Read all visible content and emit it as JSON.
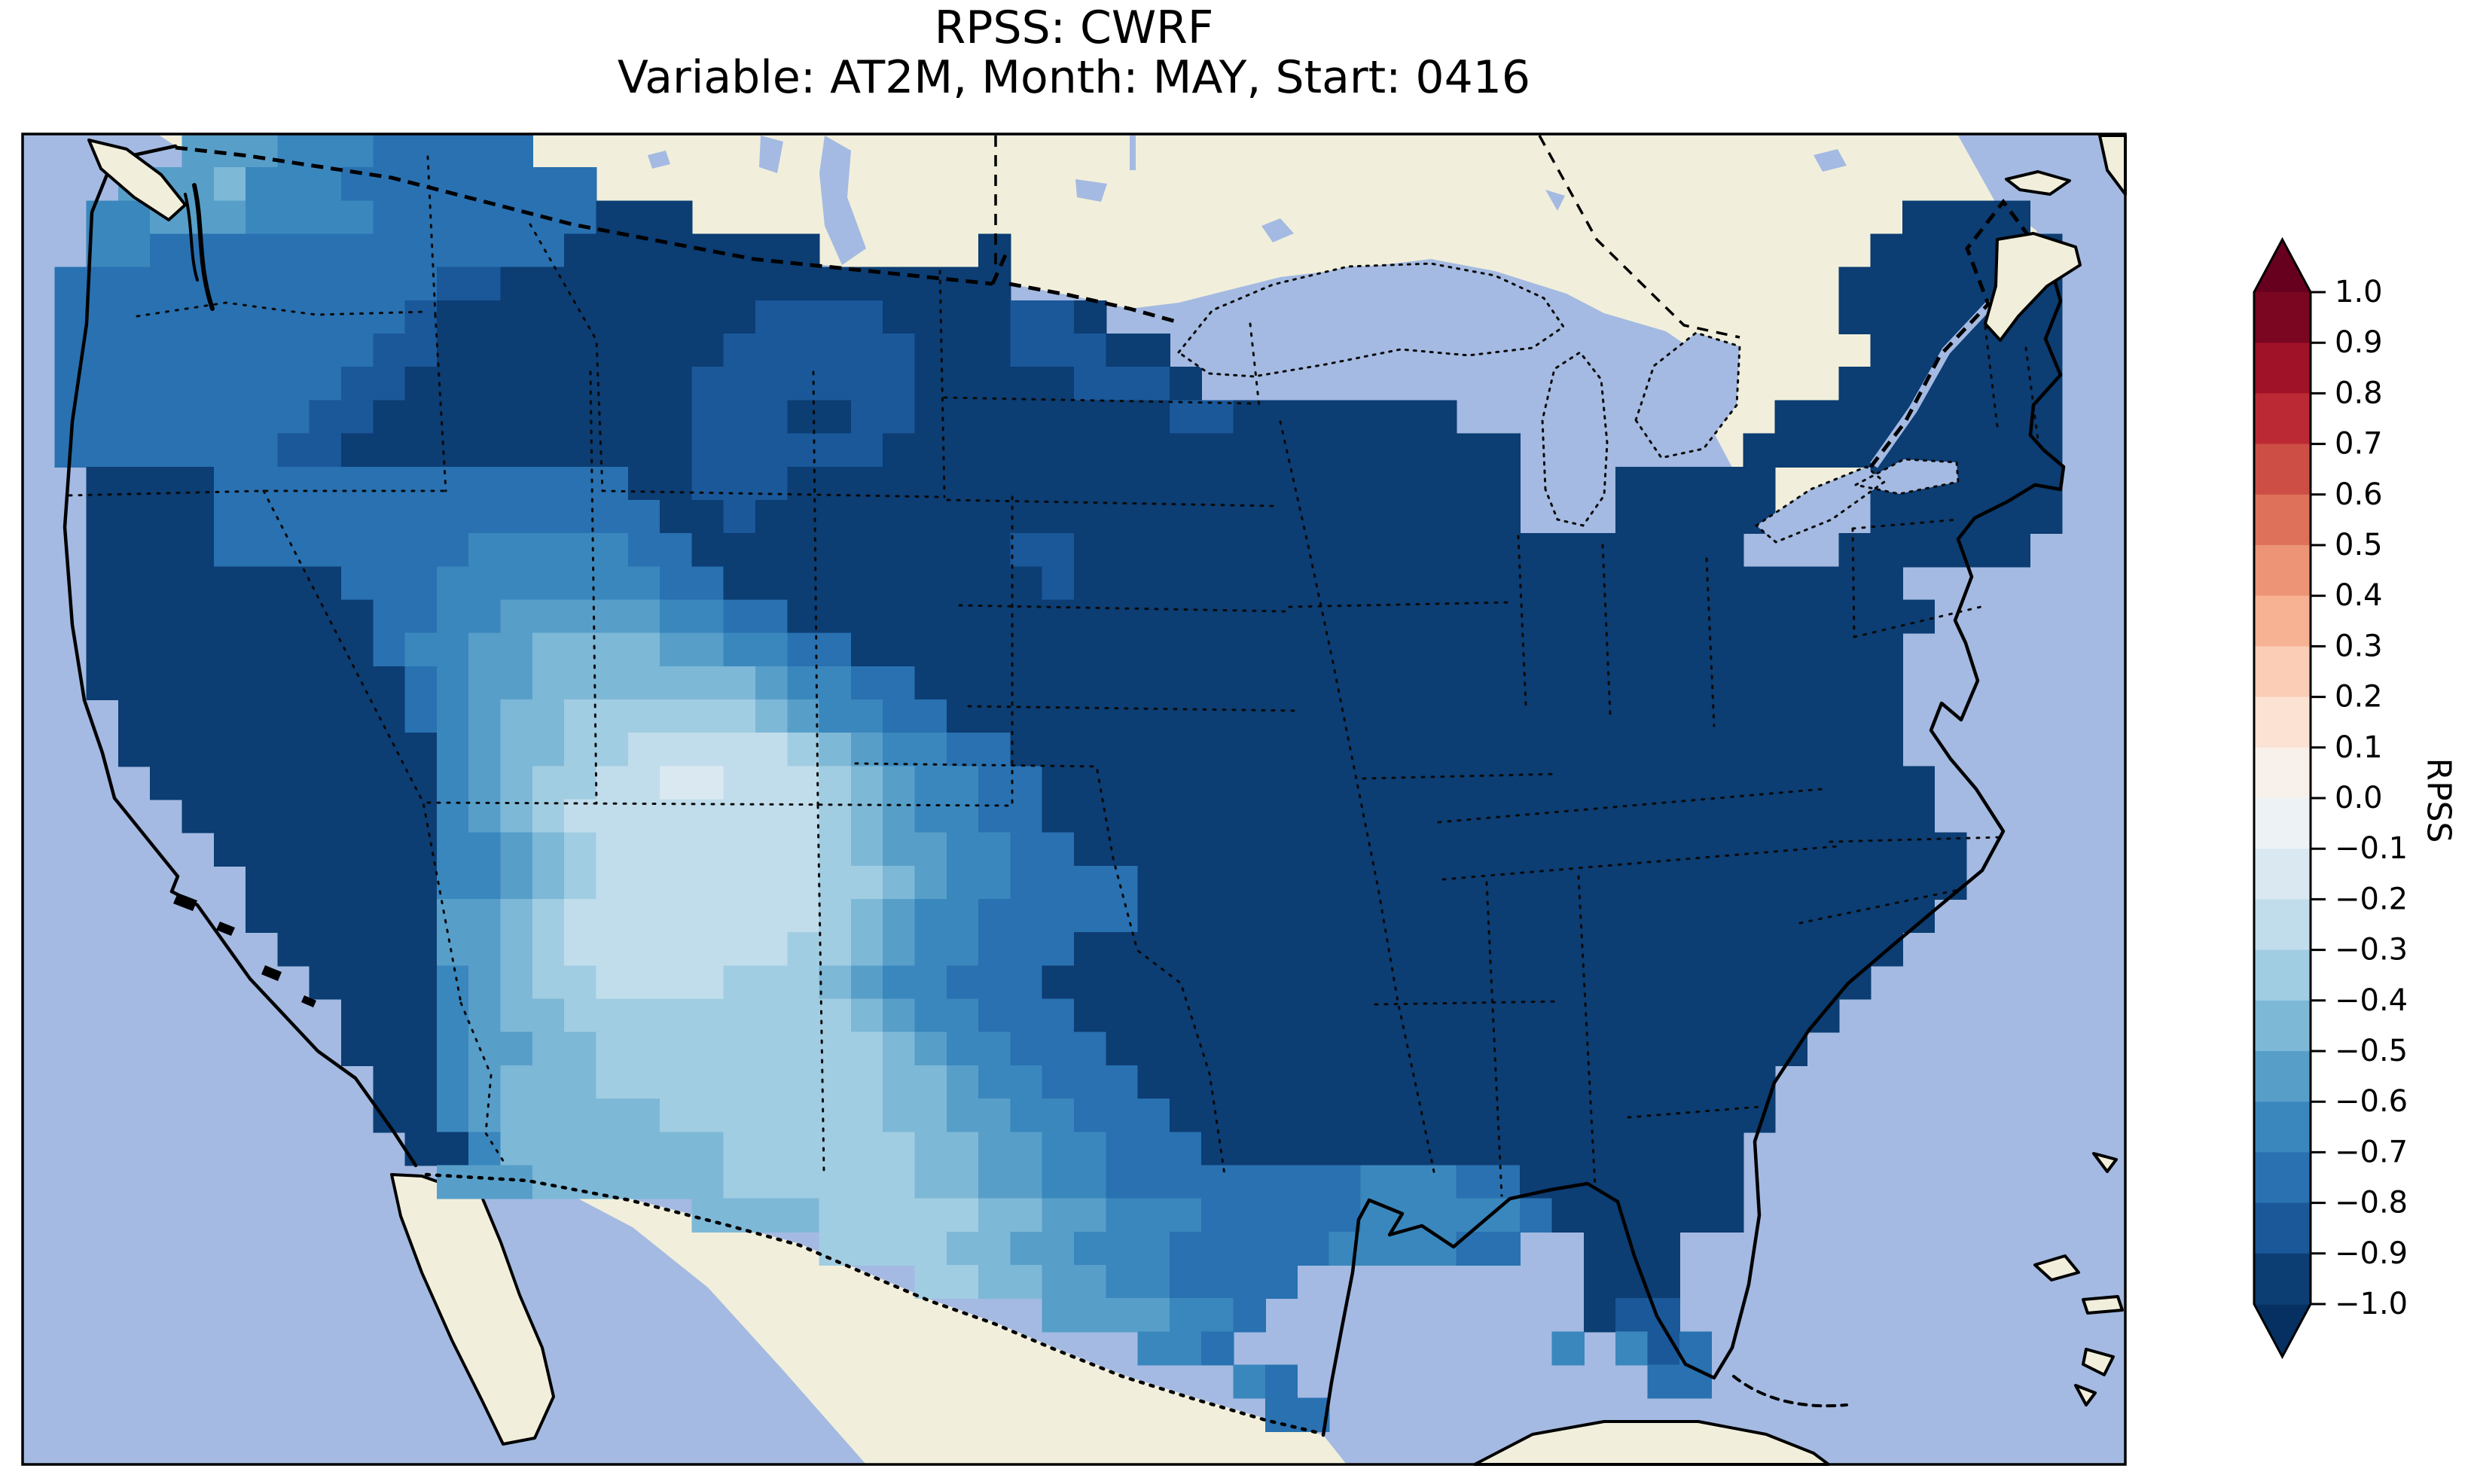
{
  "title": {
    "line1": "RPSS: CWRF",
    "line2": "Variable: AT2M, Month: MAY, Start: 0416"
  },
  "colorbar": {
    "label": "RPSS",
    "tick_labels": [
      "1.0",
      "0.9",
      "0.8",
      "0.7",
      "0.6",
      "0.5",
      "0.4",
      "0.3",
      "0.2",
      "0.1",
      "0.0",
      "−0.1",
      "−0.2",
      "−0.3",
      "−0.4",
      "−0.5",
      "−0.6",
      "−0.7",
      "−0.8",
      "−0.9",
      "−1.0"
    ],
    "segment_colors_top_to_bottom": [
      "#7a0622",
      "#9f1228",
      "#bb2a34",
      "#cd4e45",
      "#de715a",
      "#ec9475",
      "#f6b293",
      "#fbcdb6",
      "#fce2d3",
      "#f8f0eb",
      "#edf2f5",
      "#dae9f1",
      "#c1ddeb",
      "#a1cde2",
      "#7eb8d7",
      "#579fc9",
      "#3a87bd",
      "#2971b1",
      "#1a5899",
      "#0c3d73"
    ],
    "extend_above_color": "#67001f",
    "extend_below_color": "#053061",
    "vmin": -1.0,
    "vmax": 1.0,
    "step": 0.1
  },
  "map": {
    "ocean_color": "#a4bae2",
    "land_color": "#f1efdb",
    "region": "Contiguous United States with southern Canada, northern Mexico, Gulf of Mexico, Great Lakes, Cuba and Bahamas visible"
  },
  "chart_data": {
    "type": "heatmap",
    "title": "RPSS: CWRF",
    "subtitle": "Variable: AT2M, Month: MAY, Start: 0416",
    "model": "CWRF",
    "variable": "AT2M",
    "month": "MAY",
    "start": "0416",
    "colorbar_label": "RPSS",
    "colorbar_ticks": [
      1.0,
      0.9,
      0.8,
      0.7,
      0.6,
      0.5,
      0.4,
      0.3,
      0.2,
      0.1,
      0.0,
      -0.1,
      -0.2,
      -0.3,
      -0.4,
      -0.5,
      -0.6,
      -0.7,
      -0.8,
      -0.9,
      -1.0
    ],
    "value_range": [
      -1.0,
      1.0
    ],
    "colormap": "RdBu discrete, 0.1 bins, pointed extend arrows both ends",
    "description": "RPSS is strongly negative (−0.9 to −1.0, dark navy) over most of CONUS; moderate negative values (−0.4 to −0.8, medium blues) over the Pacific Northwest, Great Basin, eastern Montana/Dakotas, south Texas and Louisiana; least negative values (−0.1 to −0.3, pale blues) centered on New Mexico / west Texas.",
    "raster": {
      "cols": 66,
      "rows": 40,
      "bin_palette": {
        "b": "#dae9f1",
        "c": "#c1ddeb",
        "d": "#a1cde2",
        "e": "#7eb8d7",
        "f": "#579fc9",
        "g": "#3a87bd",
        "h": "#2971b1",
        "j": "#1a5899",
        "k": "#0c3d73"
      },
      "bin_value_ranges": {
        "b": [
          -0.2,
          -0.1
        ],
        "c": [
          -0.3,
          -0.2
        ],
        "d": [
          -0.4,
          -0.3
        ],
        "e": [
          -0.5,
          -0.4
        ],
        "f": [
          -0.6,
          -0.5
        ],
        "g": [
          -0.7,
          -0.6
        ],
        "h": [
          -0.8,
          -0.7
        ],
        "j": [
          -0.9,
          -0.8
        ],
        "k": [
          -1.0,
          -0.9
        ]
      },
      "cell_bins": [
        ".....fffggghhhhh..................................................",
        "...fffeggghhhhhhhh................................................",
        "..ggfffgggghhhhhhhkkk......................................kkkk...",
        "..gghhhhhhhhhhhhhkkkkkkkk.....k...........................kkkkkk..",
        ".hhhhhhhhhhhhjjkkkkkkkkkkkkkkkk..........................kkkkkkk..",
        ".hhhhhhhhhhhjkkkkkkkkkkjjjjkkkkjjk.......................kkkkkkk..",
        ".hhhhhhhhhhjjkkkkkkkkkjjjjjjkkkjjjkk......................kkkkkk..",
        ".hhhhhhhhhjjkkkkkkkkkjjjjjjjkkkkkjjjk....................kkkkkkk..",
        ".hhhhhhhhjjkkkkkkkkkkjjjkkjjkkkkkkkkjjkkkkkkk..........kkkkkkkkk..",
        ".hhhhhhhjjkkkkkkkkkkkjjjjjjkkkkkkkkkkkkkkkkkkkk.......kkkkkkkkkk..",
        "..kkkkhhhhhhhhhhhhhkkjjjkkkkkkkkkkkkkkkkkkkkkkk...kkkkk...kkkkkk..",
        "..kkkkhhhhhhhhhhhhhhkkjkkkkkkkkkkkkkkkkkkkkkkkk...kkkkk...kkkkkk..",
        "..kkkkhhhhhhhhggggghhkkkkkkkkkkjjkkkkkkkkkkkkkkkkkkkkk...kkkkkk..",
        "..kkkkkkkkhhhggggggghhkkkkkkkkkkjkkkkkkkkkkkkkkkkkkkkkkkkkk......",
        "..kkkkkkkkkhhggfffffgghhkkkkkkkkkkkkkkkkkkkkkkkkkkkkkkkkkkkk......",
        "..kkkkkkkkkhggffeeeeffgghhkkkkkkkkkkkkkkkkkkkkkkkkkkkkkkkkk.......",
        "..kkkkkkkkkkhgffeeeeeeefgghhkkkkkkkkkkkkkkkkkkkkkkkkkkkkkkk.......",
        "...kkkkkkkkkhgfeeddddddefgghhkkkkkkkkkkkkkkkkkkkkkkkkkkkkkk.......",
        "...kkkkkkkkkkgfeeddcccccdefgghhkkkkkkkkkkkkkkkkkkkkkkkkkkkk.......",
        "....kkkkkkkkkgfeddccbbcccdefgghhkkkkkkkkkkkkkkkkkkkkkkkkkkkk......",
        ".....kkkkkkkkgfedccccccccdefgghhkkkkkkkkkkkkkkkkkkkkkkkkkkkk......",
        "......kkkkkkkggfedcccccccdeffgghhkkkkkkkkkkkkkkkkkkkkkkkkkkkk.....",
        ".......kkkkkkggfedcccccccddefgghhhhkkkkkkkkkkkkkkkkkkkkkkkkkk.....",
        ".......kkkkkkffedccccccccdefgghhhhhkkkkkkkkkkkkkkkkkkkkkkkkk......",
        "........kkkkkffedcccccccddefgghhhkkkkkkkkkkkkkkkkkkkkkkkkkk.......",
        ".........kkkkgfeddccccdddefgghhhkkkkkkkkkkkkkkkkkkkkkkkkkk........",
        "..........kkkgfeedddddddddefgghhhkkkkkkkkkkkkkkkkkkkkkkkk.........",
        "..........kkkgffeedddddddddefgghhhkkkkkkkkkkkkkkkkkkkkkk..........",
        "...........kkgfeeedddddddddeefgghhhkkkkkkkkkkkkkkkkkkkk...........",
        "...........kkgfeeeeedddddddeeffgghhhkkkkkkkkkkkkkkkkkkk...........",
        "............kkgeeeeeeeddddddeeffgghhhkkkkkkkkkkkkkkkkk............",
        ".............fffeeeeeeddddddeeffgghhhhhhhhggghhkkkkkkk............",
        ".....................eeeedddddeeffggghhhhhggggghkkkkkk.............",
        ".........................ddddeeffggghhhhhgggghh..kkk..............",
        "............................ddeeffgghhhh.........kkk..............",
        "................................ffffggh..........kjj..............",
        "...................................ggh..........g.gjh.............",
        "......................................gh...........hh.............",
        ".......................................hh.........................",
        ".................................................................."
      ]
    }
  }
}
